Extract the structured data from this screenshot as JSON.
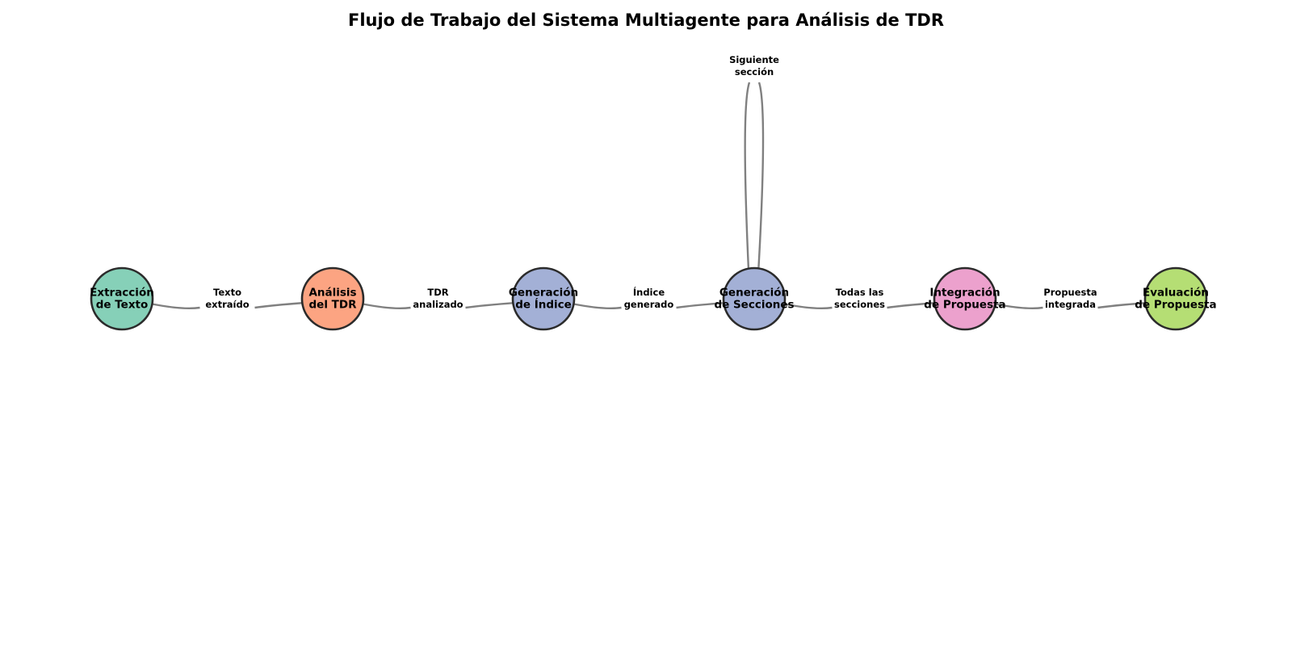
{
  "diagram": {
    "title": "Flujo de Trabajo del Sistema Multiagente para Análisis de TDR",
    "nodes": [
      {
        "id": "extraccion",
        "lines": [
          "Extracción",
          "de Texto"
        ],
        "color": "#86d0b8"
      },
      {
        "id": "analisis",
        "lines": [
          "Análisis",
          "del TDR"
        ],
        "color": "#fca482"
      },
      {
        "id": "indice",
        "lines": [
          "Generación",
          "de Índice"
        ],
        "color": "#a3b0d6"
      },
      {
        "id": "secciones",
        "lines": [
          "Generación",
          "de Secciones"
        ],
        "color": "#a3b0d6"
      },
      {
        "id": "integracion",
        "lines": [
          "Integración",
          "de Propuesta"
        ],
        "color": "#eca1cd"
      },
      {
        "id": "evaluacion",
        "lines": [
          "Evaluación",
          "de Propuesta"
        ],
        "color": "#b5de74"
      }
    ],
    "edges": [
      {
        "from": "extraccion",
        "to": "analisis",
        "lines": [
          "Texto",
          "extraído"
        ]
      },
      {
        "from": "analisis",
        "to": "indice",
        "lines": [
          "TDR",
          "analizado"
        ]
      },
      {
        "from": "indice",
        "to": "secciones",
        "lines": [
          "Índice",
          "generado"
        ]
      },
      {
        "from": "secciones",
        "to": "integracion",
        "lines": [
          "Todas las",
          "secciones"
        ]
      },
      {
        "from": "integracion",
        "to": "evaluacion",
        "lines": [
          "Propuesta",
          "integrada"
        ]
      },
      {
        "from": "secciones",
        "to": "secciones",
        "lines": [
          "Siguiente",
          "sección"
        ],
        "loop": true
      }
    ]
  }
}
